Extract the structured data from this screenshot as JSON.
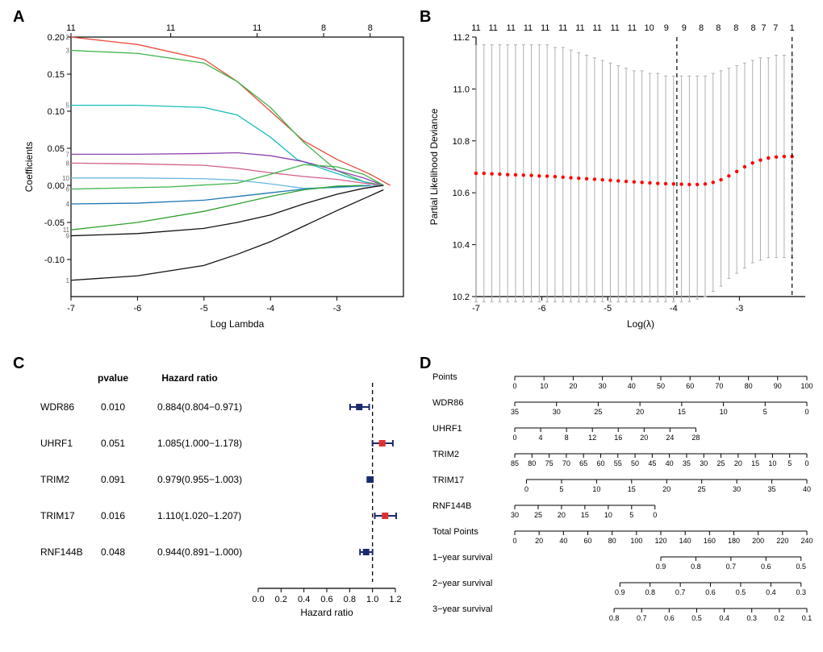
{
  "panelA": {
    "label": "A",
    "type": "line",
    "xlabel": "Log Lambda",
    "ylabel": "Coefficients",
    "xlim": [
      -7,
      -2
    ],
    "ylim": [
      -0.15,
      0.2
    ],
    "xticks": [
      -7,
      -6,
      -5,
      -4,
      -3
    ],
    "yticks": [
      -0.1,
      -0.05,
      0.0,
      0.05,
      0.1,
      0.15,
      0.2
    ],
    "top_ticks": [
      {
        "x": -7,
        "label": "11"
      },
      {
        "x": -5.5,
        "label": "11"
      },
      {
        "x": -4.2,
        "label": "11"
      },
      {
        "x": -3.2,
        "label": "8"
      },
      {
        "x": -2.5,
        "label": "8"
      }
    ],
    "background_color": "#ffffff",
    "title_fontsize": 12,
    "line_width": 1.3,
    "series": [
      {
        "id": "2",
        "color": "#e94b3c",
        "pts": [
          [
            -7,
            0.2
          ],
          [
            -6,
            0.19
          ],
          [
            -5,
            0.17
          ],
          [
            -4.5,
            0.14
          ],
          [
            -4,
            0.1
          ],
          [
            -3.5,
            0.06
          ],
          [
            -3,
            0.035
          ],
          [
            -2.5,
            0.015
          ],
          [
            -2.2,
            0.0
          ]
        ]
      },
      {
        "id": "3",
        "color": "#3cb44b",
        "pts": [
          [
            -7,
            0.182
          ],
          [
            -6,
            0.178
          ],
          [
            -5,
            0.165
          ],
          [
            -4.5,
            0.14
          ],
          [
            -4,
            0.105
          ],
          [
            -3.5,
            0.058
          ],
          [
            -3,
            0.02
          ],
          [
            -2.6,
            0.005
          ],
          [
            -2.3,
            0.0
          ]
        ]
      },
      {
        "id": "5",
        "color": "#17bebb",
        "pts": [
          [
            -7,
            0.108
          ],
          [
            -6,
            0.108
          ],
          [
            -5,
            0.105
          ],
          [
            -4.5,
            0.095
          ],
          [
            -4,
            0.065
          ],
          [
            -3.6,
            0.035
          ],
          [
            -3.2,
            0.022
          ],
          [
            -2.8,
            0.01
          ],
          [
            -2.4,
            0.0
          ]
        ]
      },
      {
        "id": "7",
        "color": "#8e44ad",
        "pts": [
          [
            -7,
            0.042
          ],
          [
            -6,
            0.042
          ],
          [
            -5,
            0.043
          ],
          [
            -4.5,
            0.044
          ],
          [
            -4,
            0.04
          ],
          [
            -3.5,
            0.032
          ],
          [
            -3,
            0.02
          ],
          [
            -2.6,
            0.01
          ],
          [
            -2.3,
            0.0
          ]
        ]
      },
      {
        "id": "8",
        "color": "#d35d8c",
        "pts": [
          [
            -7,
            0.03
          ],
          [
            -6,
            0.029
          ],
          [
            -5,
            0.027
          ],
          [
            -4.5,
            0.023
          ],
          [
            -4,
            0.017
          ],
          [
            -3.5,
            0.012
          ],
          [
            -3,
            0.008
          ],
          [
            -2.6,
            0.003
          ],
          [
            -2.3,
            0.0
          ]
        ]
      },
      {
        "id": "10",
        "color": "#6bb8e0",
        "pts": [
          [
            -7,
            0.01
          ],
          [
            -6,
            0.01
          ],
          [
            -5,
            0.009
          ],
          [
            -4.5,
            0.007
          ],
          [
            -4,
            0.002
          ],
          [
            -3.5,
            -0.004
          ],
          [
            -3,
            -0.003
          ],
          [
            -2.6,
            -0.001
          ],
          [
            -2.3,
            0.0
          ]
        ]
      },
      {
        "id": "6",
        "color": "#3cb44b",
        "pts": [
          [
            -7,
            -0.005
          ],
          [
            -5.5,
            -0.002
          ],
          [
            -4.5,
            0.003
          ],
          [
            -4,
            0.015
          ],
          [
            -3.5,
            0.028
          ],
          [
            -3,
            0.025
          ],
          [
            -2.6,
            0.015
          ],
          [
            -2.3,
            0.0
          ]
        ]
      },
      {
        "id": "4",
        "color": "#1f77b4",
        "pts": [
          [
            -7,
            -0.025
          ],
          [
            -6,
            -0.024
          ],
          [
            -5,
            -0.02
          ],
          [
            -4.5,
            -0.015
          ],
          [
            -4,
            -0.01
          ],
          [
            -3.5,
            -0.005
          ],
          [
            -3,
            -0.002
          ],
          [
            -2.5,
            0.0
          ]
        ]
      },
      {
        "id": "11",
        "color": "#2ca02c",
        "pts": [
          [
            -7,
            -0.06
          ],
          [
            -6,
            -0.05
          ],
          [
            -5,
            -0.035
          ],
          [
            -4.5,
            -0.025
          ],
          [
            -4,
            -0.015
          ],
          [
            -3.5,
            -0.006
          ],
          [
            -3,
            -0.001
          ],
          [
            -2.6,
            0.0
          ]
        ]
      },
      {
        "id": "9",
        "color": "#111111",
        "pts": [
          [
            -7,
            -0.068
          ],
          [
            -6,
            -0.065
          ],
          [
            -5,
            -0.058
          ],
          [
            -4.5,
            -0.05
          ],
          [
            -4,
            -0.04
          ],
          [
            -3.5,
            -0.025
          ],
          [
            -3,
            -0.012
          ],
          [
            -2.6,
            -0.004
          ],
          [
            -2.3,
            0.0
          ]
        ]
      },
      {
        "id": "1",
        "color": "#111111",
        "pts": [
          [
            -7,
            -0.128
          ],
          [
            -6,
            -0.122
          ],
          [
            -5,
            -0.108
          ],
          [
            -4.5,
            -0.093
          ],
          [
            -4,
            -0.076
          ],
          [
            -3.5,
            -0.055
          ],
          [
            -3,
            -0.034
          ],
          [
            -2.6,
            -0.018
          ],
          [
            -2.3,
            -0.006
          ]
        ]
      }
    ],
    "series_label_fontsize": 8,
    "series_label_color": "#666666"
  },
  "panelB": {
    "label": "B",
    "type": "cv-errorbar",
    "xlabel": "Log(λ)",
    "ylabel": "Partial Likelihood Deviance",
    "xlim": [
      -7,
      -2
    ],
    "ylim": [
      10.2,
      11.2
    ],
    "xticks": [
      -7,
      -6,
      -5,
      -4,
      -3
    ],
    "yticks": [
      10.2,
      10.4,
      10.6,
      10.8,
      11.0,
      11.2
    ],
    "top_labels": [
      "11",
      "11",
      "11",
      "11",
      "11",
      "11",
      "11",
      "11",
      "11",
      "11",
      "10",
      "9",
      "9",
      "8",
      "8",
      "8",
      "8",
      "7",
      "7",
      "1"
    ],
    "top_positions": [
      -7.0,
      -6.74,
      -6.47,
      -6.21,
      -5.95,
      -5.68,
      -5.42,
      -5.16,
      -4.89,
      -4.63,
      -4.37,
      -4.11,
      -3.84,
      -3.58,
      -3.32,
      -3.05,
      -2.79,
      -2.63,
      -2.45,
      -2.2
    ],
    "vlines": [
      -3.95,
      -2.2
    ],
    "vline_style": "dashed",
    "vline_color": "#000000",
    "point_color": "#ff0000",
    "point_radius": 2.2,
    "errorbar_color": "#b0b0b0",
    "errorbar_width": 1,
    "cap_width": 4,
    "lambdas": [
      -7.0,
      -6.88,
      -6.76,
      -6.64,
      -6.52,
      -6.4,
      -6.28,
      -6.16,
      -6.04,
      -5.92,
      -5.8,
      -5.68,
      -5.56,
      -5.44,
      -5.32,
      -5.2,
      -5.08,
      -4.96,
      -4.84,
      -4.72,
      -4.6,
      -4.48,
      -4.36,
      -4.24,
      -4.12,
      -4.0,
      -3.88,
      -3.76,
      -3.64,
      -3.52,
      -3.4,
      -3.28,
      -3.16,
      -3.04,
      -2.92,
      -2.8,
      -2.68,
      -2.56,
      -2.44,
      -2.32,
      -2.2
    ],
    "means": [
      10.675,
      10.675,
      10.673,
      10.672,
      10.67,
      10.669,
      10.668,
      10.667,
      10.665,
      10.664,
      10.662,
      10.66,
      10.658,
      10.656,
      10.654,
      10.652,
      10.65,
      10.648,
      10.646,
      10.644,
      10.642,
      10.64,
      10.638,
      10.636,
      10.635,
      10.634,
      10.633,
      10.632,
      10.632,
      10.634,
      10.64,
      10.65,
      10.665,
      10.682,
      10.7,
      10.715,
      10.726,
      10.734,
      10.738,
      10.74,
      10.74
    ],
    "lo": [
      10.18,
      10.18,
      10.18,
      10.18,
      10.18,
      10.18,
      10.18,
      10.18,
      10.18,
      10.18,
      10.18,
      10.18,
      10.18,
      10.18,
      10.18,
      10.18,
      10.18,
      10.18,
      10.18,
      10.18,
      10.18,
      10.18,
      10.18,
      10.18,
      10.18,
      10.18,
      10.18,
      10.18,
      10.19,
      10.2,
      10.22,
      10.24,
      10.27,
      10.29,
      10.31,
      10.33,
      10.34,
      10.35,
      10.35,
      10.35,
      10.35
    ],
    "hi": [
      11.17,
      11.17,
      11.17,
      11.17,
      11.17,
      11.17,
      11.17,
      11.17,
      11.17,
      11.17,
      11.16,
      11.16,
      11.15,
      11.14,
      11.13,
      11.12,
      11.11,
      11.1,
      11.09,
      11.08,
      11.07,
      11.07,
      11.06,
      11.06,
      11.05,
      11.05,
      11.05,
      11.05,
      11.05,
      11.05,
      11.06,
      11.07,
      11.08,
      11.09,
      11.1,
      11.11,
      11.12,
      11.12,
      11.13,
      11.13,
      11.13
    ]
  },
  "panelC": {
    "label": "C",
    "type": "forest",
    "xlabel": "Hazard ratio",
    "xlim": [
      0.0,
      1.2
    ],
    "xticks": [
      0.0,
      0.2,
      0.4,
      0.6,
      0.8,
      1.0,
      1.2
    ],
    "ref_line": 1.0,
    "ref_style": "dashed",
    "ref_color": "#000000",
    "marker_fill_protective": "#1a2a6c",
    "marker_fill_risk": "#e03131",
    "ci_color": "#1a2a6c",
    "ci_width": 2,
    "square_size": 8,
    "cap_height": 8,
    "header": {
      "pvalue": "pvalue",
      "hr": "Hazard ratio"
    },
    "label_fontsize": 12,
    "rows": [
      {
        "name": "WDR86",
        "pvalue": "0.010",
        "hr_text": "0.884(0.804−0.971)",
        "hr": 0.884,
        "lo": 0.804,
        "hi": 0.971
      },
      {
        "name": "UHRF1",
        "pvalue": "0.051",
        "hr_text": "1.085(1.000−1.178)",
        "hr": 1.085,
        "lo": 1.0,
        "hi": 1.178
      },
      {
        "name": "TRIM2",
        "pvalue": "0.091",
        "hr_text": "0.979(0.955−1.003)",
        "hr": 0.979,
        "lo": 0.955,
        "hi": 1.003
      },
      {
        "name": "TRIM17",
        "pvalue": "0.016",
        "hr_text": "1.110(1.020−1.207)",
        "hr": 1.11,
        "lo": 1.02,
        "hi": 1.207
      },
      {
        "name": "RNF144B",
        "pvalue": "0.048",
        "hr_text": "0.944(0.891−1.000)",
        "hr": 0.944,
        "lo": 0.891,
        "hi": 1.0
      }
    ]
  },
  "panelD": {
    "label": "D",
    "type": "nomogram",
    "label_fontsize": 11,
    "axis_color": "#000000",
    "tick_height": 5,
    "rows": [
      {
        "name": "Points",
        "ticks": [
          0,
          10,
          20,
          30,
          40,
          50,
          60,
          70,
          80,
          90,
          100
        ],
        "range_frac": [
          0.0,
          1.0
        ],
        "dir": "ltr"
      },
      {
        "name": "WDR86",
        "ticks": [
          35,
          30,
          25,
          20,
          15,
          10,
          5,
          0
        ],
        "range_frac": [
          0.0,
          1.0
        ],
        "dir": "ltr"
      },
      {
        "name": "UHRF1",
        "ticks": [
          0,
          4,
          8,
          12,
          16,
          20,
          24,
          28
        ],
        "range_frac": [
          0.0,
          0.62
        ],
        "dir": "ltr"
      },
      {
        "name": "TRIM2",
        "ticks": [
          85,
          80,
          75,
          70,
          65,
          60,
          55,
          50,
          45,
          40,
          35,
          30,
          25,
          20,
          15,
          10,
          5,
          0
        ],
        "range_frac": [
          0.0,
          1.0
        ],
        "dir": "ltr"
      },
      {
        "name": "TRIM17",
        "ticks": [
          0,
          5,
          10,
          15,
          20,
          25,
          30,
          35,
          40
        ],
        "range_frac": [
          0.04,
          1.0
        ],
        "dir": "ltr"
      },
      {
        "name": "RNF144B",
        "ticks": [
          30,
          25,
          20,
          15,
          10,
          5,
          0
        ],
        "range_frac": [
          0.0,
          0.48
        ],
        "dir": "ltr"
      },
      {
        "name": "Total Points",
        "ticks": [
          0,
          20,
          40,
          60,
          80,
          100,
          120,
          140,
          160,
          180,
          200,
          220,
          240
        ],
        "range_frac": [
          0.0,
          1.0
        ],
        "dir": "ltr"
      },
      {
        "name": "1−year survival",
        "ticks": [
          0.9,
          0.8,
          0.7,
          0.6,
          0.5
        ],
        "range_frac": [
          0.5,
          0.98
        ],
        "dir": "ltr"
      },
      {
        "name": "2−year survival",
        "ticks": [
          0.9,
          0.8,
          0.7,
          0.6,
          0.5,
          0.4,
          0.3
        ],
        "range_frac": [
          0.36,
          0.98
        ],
        "dir": "ltr"
      },
      {
        "name": "3−year survival",
        "ticks": [
          0.8,
          0.7,
          0.6,
          0.5,
          0.4,
          0.3,
          0.2,
          0.1
        ],
        "range_frac": [
          0.34,
          1.0
        ],
        "dir": "ltr"
      }
    ]
  }
}
